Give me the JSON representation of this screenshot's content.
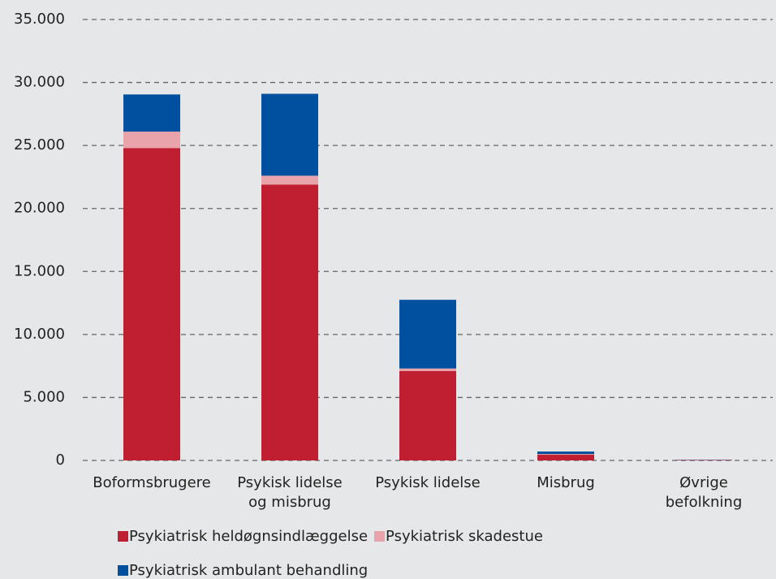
{
  "chart_data": {
    "type": "stacked_bar",
    "categories": [
      "Boformsbrugere",
      "Psykisk lidelse\nog misbrug",
      "Psykisk lidelse",
      "Misbrug",
      "Øvrige\nbefolkning"
    ],
    "series": [
      {
        "name": "Psykiatrisk heldøgnsindlæggelse",
        "color": "#c01f32",
        "values": [
          24800,
          21900,
          7100,
          450,
          30
        ]
      },
      {
        "name": "Psykiatrisk skadestue",
        "color": "#e8a3ab",
        "values": [
          1300,
          700,
          200,
          60,
          5
        ]
      },
      {
        "name": "Psykiatrisk ambulant behandling",
        "color": "#0050a0",
        "values": [
          2950,
          6500,
          5450,
          200,
          20
        ]
      }
    ],
    "ylim": [
      0,
      35000
    ],
    "yticks": [
      0,
      {
        "value": 5000,
        "label": "5.000"
      },
      {
        "value": 10000,
        "label": "10.000"
      },
      {
        "value": 15000,
        "label": "15.000"
      },
      {
        "value": 20000,
        "label": "20.000"
      },
      {
        "value": 25000,
        "label": "25.000"
      },
      {
        "value": 30000,
        "label": "30.000"
      },
      {
        "value": 35000,
        "label": "35.000"
      }
    ],
    "grid": true,
    "legend": "bottom"
  }
}
